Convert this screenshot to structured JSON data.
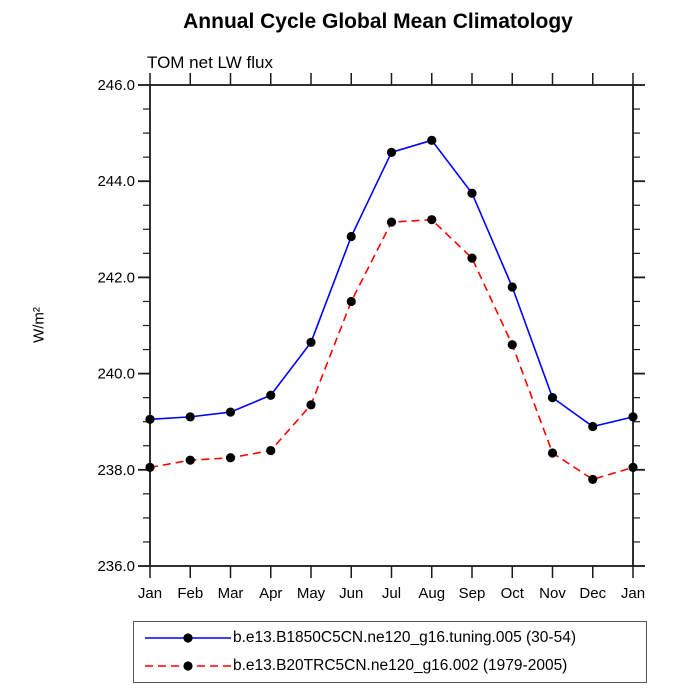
{
  "chart_data": {
    "type": "line",
    "title": "Annual Cycle Global Mean Climatology",
    "subtitle": "TOM net LW flux",
    "ylabel": "W/m²",
    "xlabel": "",
    "categories": [
      "Jan",
      "Feb",
      "Mar",
      "Apr",
      "May",
      "Jun",
      "Jul",
      "Aug",
      "Sep",
      "Oct",
      "Nov",
      "Dec",
      "Jan"
    ],
    "series": [
      {
        "name": "b.e13.B1850C5CN.ne120_g16.tuning.005 (30-54)",
        "color": "#0000ff",
        "line_style": "solid",
        "marker": "filled-circle",
        "marker_color": "#000000",
        "values": [
          239.05,
          239.1,
          239.2,
          239.55,
          240.65,
          242.85,
          244.6,
          244.85,
          243.75,
          241.8,
          239.5,
          238.9,
          239.1
        ]
      },
      {
        "name": "b.e13.B20TRC5CN.ne120_g16.002 (1979-2005)",
        "color": "#ff0000",
        "line_style": "dashed",
        "marker": "filled-circle",
        "marker_color": "#000000",
        "values": [
          238.05,
          238.2,
          238.25,
          238.4,
          239.35,
          241.5,
          243.15,
          243.2,
          242.4,
          240.6,
          238.35,
          237.8,
          238.05
        ]
      }
    ],
    "ylim": [
      236.0,
      246.0
    ],
    "ytick_major_step": 2.0,
    "ytick_minor_step": 0.5,
    "ytick_labels": [
      "236.0",
      "238.0",
      "240.0",
      "242.0",
      "244.0",
      "246.0"
    ],
    "grid": false,
    "legend_position": "bottom",
    "axis_color": "#1a1a1a"
  }
}
